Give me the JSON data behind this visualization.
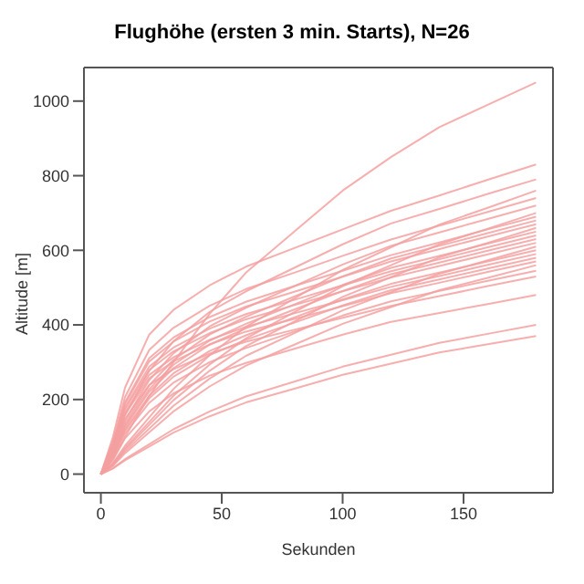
{
  "chart_data": {
    "type": "line",
    "title": "Flughöhe (ersten 3 min. Starts), N=26",
    "xlabel": "Sekunden",
    "ylabel": "Altitude [m]",
    "x": [
      0,
      5,
      10,
      20,
      30,
      45,
      60,
      80,
      100,
      120,
      140,
      160,
      180
    ],
    "xlim": [
      -7,
      187
    ],
    "xticks": [
      0,
      50,
      100,
      150
    ],
    "ylim": [
      -50,
      1090
    ],
    "yticks": [
      0,
      200,
      400,
      600,
      800,
      1000
    ],
    "grid": false,
    "legend": false,
    "marker": "none",
    "line_style": "solid",
    "series": [
      {
        "color": "#f4a0a0",
        "values": [
          0,
          40,
          100,
          210,
          300,
          430,
          540,
          650,
          760,
          850,
          930,
          990,
          1050
        ]
      },
      {
        "color": "#f4a0a0",
        "values": [
          0,
          100,
          232,
          374,
          440,
          506,
          556,
          606,
          656,
          706,
          747,
          789,
          830
        ]
      },
      {
        "color": "#f4a0a0",
        "values": [
          0,
          63,
          158,
          277,
          356,
          435,
          490,
          553,
          616,
          672,
          711,
          751,
          790
        ]
      },
      {
        "color": "#f4a0a0",
        "values": [
          0,
          30,
          76,
          152,
          228,
          319,
          395,
          471,
          547,
          608,
          669,
          714,
          760
        ]
      },
      {
        "color": "#f4a0a0",
        "values": [
          0,
          89,
          207,
          333,
          392,
          451,
          496,
          540,
          585,
          629,
          666,
          703,
          740
        ]
      },
      {
        "color": "#f4a0a0",
        "values": [
          0,
          58,
          144,
          252,
          324,
          396,
          446,
          504,
          562,
          612,
          648,
          684,
          720
        ]
      },
      {
        "color": "#f4a0a0",
        "values": [
          0,
          28,
          70,
          140,
          210,
          294,
          364,
          434,
          504,
          560,
          616,
          658,
          700
        ]
      },
      {
        "color": "#f4a0a0",
        "values": [
          0,
          83,
          193,
          311,
          366,
          421,
          462,
          504,
          545,
          587,
          621,
          656,
          690
        ]
      },
      {
        "color": "#f4a0a0",
        "values": [
          0,
          54,
          136,
          238,
          306,
          374,
          422,
          476,
          530,
          578,
          612,
          646,
          680
        ]
      },
      {
        "color": "#f4a0a0",
        "values": [
          0,
          80,
          188,
          302,
          355,
          409,
          449,
          489,
          529,
          570,
          603,
          637,
          670
        ]
      },
      {
        "color": "#f4a0a0",
        "values": [
          0,
          26,
          66,
          132,
          198,
          277,
          343,
          409,
          475,
          528,
          581,
          620,
          660
        ]
      },
      {
        "color": "#f4a0a0",
        "values": [
          0,
          52,
          130,
          228,
          293,
          358,
          403,
          455,
          507,
          553,
          585,
          618,
          650
        ]
      },
      {
        "color": "#f4a0a0",
        "values": [
          0,
          77,
          179,
          288,
          339,
          390,
          429,
          467,
          506,
          544,
          576,
          608,
          640
        ]
      },
      {
        "color": "#f4a0a0",
        "values": [
          0,
          50,
          126,
          221,
          284,
          347,
          391,
          441,
          491,
          536,
          567,
          599,
          630
        ]
      },
      {
        "color": "#f4a0a0",
        "values": [
          0,
          74,
          174,
          279,
          329,
          378,
          415,
          453,
          490,
          527,
          558,
          589,
          620
        ]
      },
      {
        "color": "#f4a0a0",
        "values": [
          0,
          24,
          61,
          122,
          183,
          256,
          317,
          378,
          439,
          488,
          537,
          573,
          610
        ]
      },
      {
        "color": "#f4a0a0",
        "values": [
          0,
          48,
          120,
          210,
          270,
          330,
          372,
          420,
          468,
          510,
          540,
          570,
          600
        ]
      },
      {
        "color": "#f4a0a0",
        "values": [
          0,
          71,
          165,
          266,
          313,
          360,
          395,
          431,
          466,
          502,
          531,
          561,
          590
        ]
      },
      {
        "color": "#f4a0a0",
        "values": [
          0,
          46,
          116,
          203,
          261,
          319,
          360,
          406,
          452,
          493,
          522,
          551,
          580
        ]
      },
      {
        "color": "#f4a0a0",
        "values": [
          0,
          68,
          160,
          257,
          302,
          348,
          382,
          416,
          450,
          485,
          513,
          542,
          570
        ]
      },
      {
        "color": "#f4a0a0",
        "values": [
          0,
          22,
          56,
          112,
          168,
          235,
          291,
          347,
          403,
          448,
          493,
          526,
          560
        ]
      },
      {
        "color": "#f4a0a0",
        "values": [
          0,
          44,
          109,
          191,
          245,
          300,
          338,
          382,
          425,
          463,
          491,
          518,
          545
        ]
      },
      {
        "color": "#f4a0a0",
        "values": [
          0,
          64,
          148,
          239,
          281,
          323,
          355,
          387,
          419,
          451,
          477,
          504,
          530
        ]
      },
      {
        "color": "#f4a0a0",
        "values": [
          0,
          38,
          96,
          168,
          216,
          264,
          298,
          336,
          374,
          408,
          432,
          456,
          480
        ]
      },
      {
        "color": "#f4a0a0",
        "values": [
          0,
          16,
          40,
          80,
          120,
          168,
          208,
          248,
          288,
          320,
          352,
          376,
          400
        ]
      },
      {
        "color": "#f4a0a0",
        "values": [
          0,
          15,
          37,
          74,
          111,
          155,
          192,
          229,
          266,
          296,
          326,
          348,
          370
        ]
      }
    ]
  }
}
